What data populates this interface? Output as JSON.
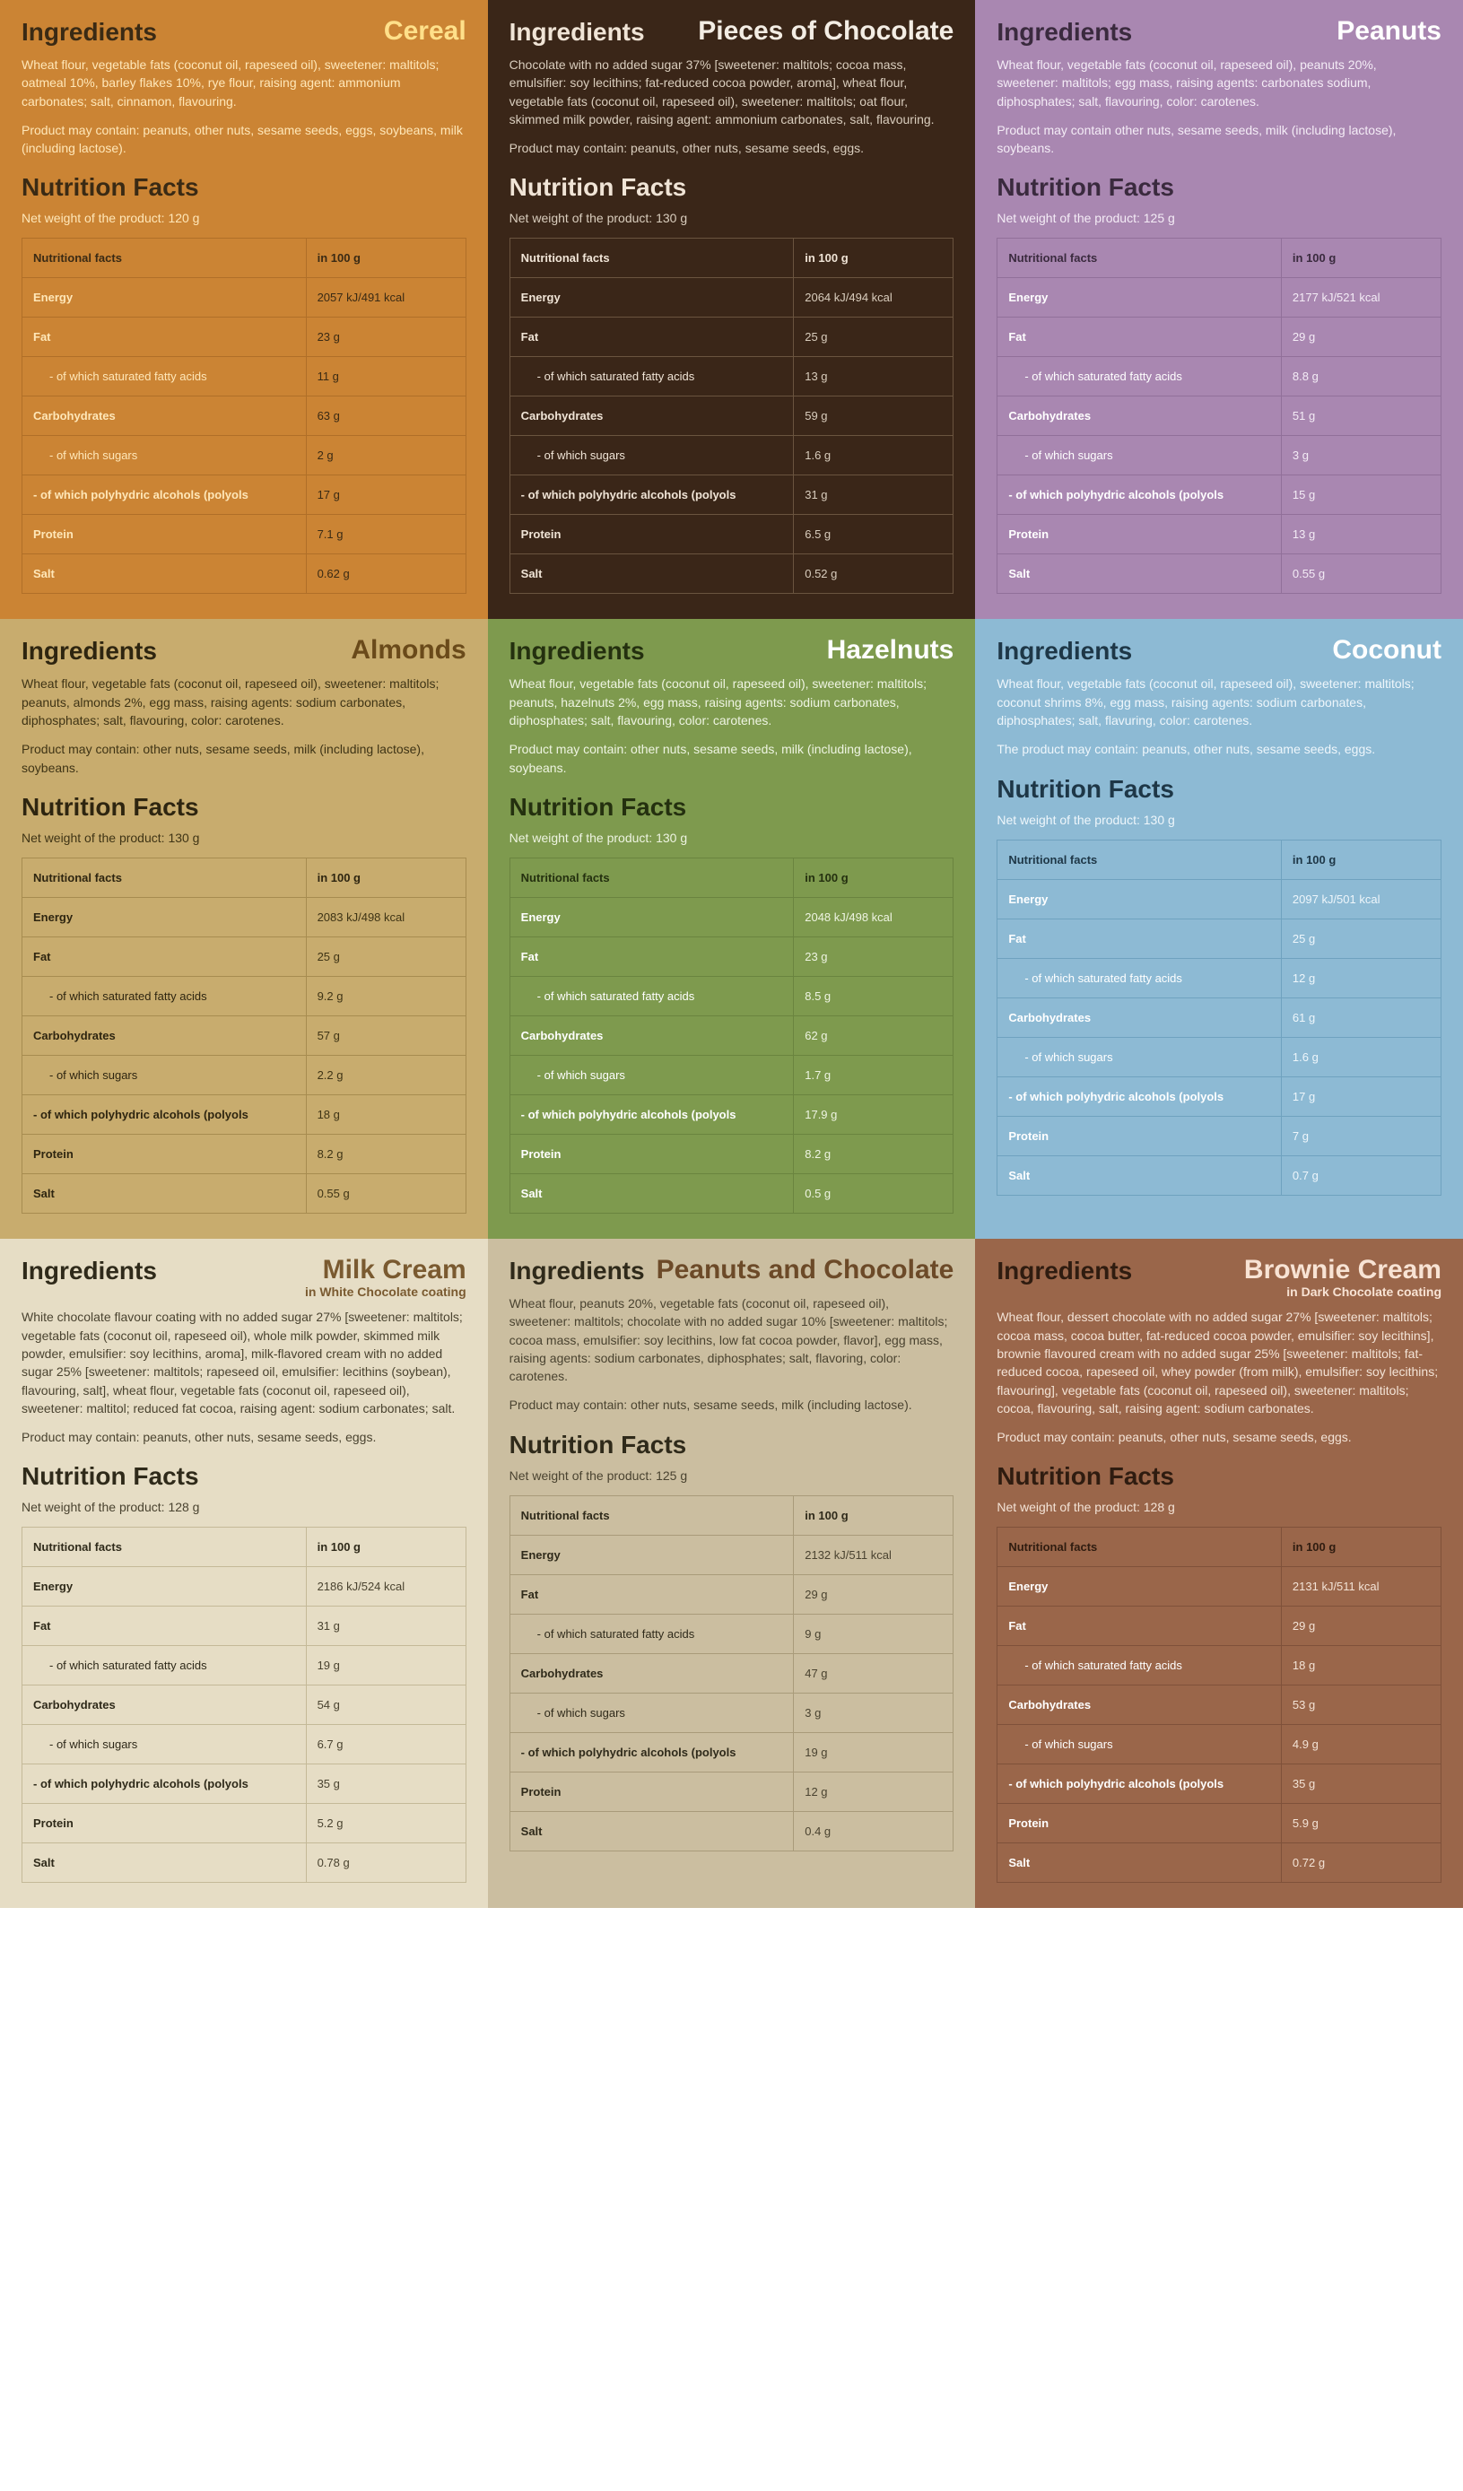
{
  "labels": {
    "ingredients": "Ingredients",
    "nutrition_facts": "Nutrition Facts",
    "net_weight_prefix": "Net weight of the product: ",
    "col_facts": "Nutritional facts",
    "col_in100": "in 100 g"
  },
  "row_defs": [
    {
      "key": "energy",
      "label": "Energy",
      "sub": false
    },
    {
      "key": "fat",
      "label": "Fat",
      "sub": false
    },
    {
      "key": "sat",
      "label": "- of which saturated fatty acids",
      "sub": true
    },
    {
      "key": "carbs",
      "label": "Carbohydrates",
      "sub": false
    },
    {
      "key": "sugars",
      "label": "- of which sugars",
      "sub": true
    },
    {
      "key": "polyols",
      "label": "- of which polyhydric alcohols (polyols",
      "sub": false
    },
    {
      "key": "protein",
      "label": "Protein",
      "sub": false
    },
    {
      "key": "salt",
      "label": "Salt",
      "sub": false
    }
  ],
  "cards": [
    {
      "title": "Cereal",
      "subtitle": "",
      "bg": "#cb8434",
      "heading": "#3a2a14",
      "title_color": "#ffe08a",
      "text": "#ffe7b8",
      "table_heading": "#3a2a14",
      "border": "#b06f28",
      "row_label": "#ffe7b8",
      "row_val": "#3a2a14",
      "ingredients": "Wheat flour, vegetable fats (coconut oil, rapeseed oil), sweetener: maltitols; oatmeal 10%, barley flakes 10%, rye flour, raising agent: ammonium carbonates; salt, cinnamon, flavouring.",
      "may_contain": "Product may contain: peanuts, other nuts, sesame seeds, eggs, soybeans, milk (including lactose).",
      "net_weight": "120 g",
      "vals": {
        "energy": "2057 kJ/491 kcal",
        "fat": "23 g",
        "sat": "11 g",
        "carbs": "63 g",
        "sugars": "2 g",
        "polyols": "17 g",
        "protein": "7.1 g",
        "salt": "0.62 g"
      }
    },
    {
      "title": "Pieces of Chocolate",
      "subtitle": "",
      "bg": "#3a2618",
      "heading": "#f0e4d6",
      "title_color": "#f3ede4",
      "text": "#d9cdbd",
      "table_heading": "#f0e4d6",
      "border": "#6a543f",
      "row_label": "#f0e4d6",
      "row_val": "#d9cdbd",
      "ingredients": "Chocolate with no added sugar 37% [sweetener: maltitols; cocoa mass, emulsifier: soy lecithins; fat-reduced cocoa powder, aroma], wheat flour, vegetable fats (coconut oil, rapeseed oil), sweetener: maltitols; oat flour, skimmed milk powder, raising agent: ammonium carbonates, salt, flavouring.",
      "may_contain": "Product may contain: peanuts, other nuts, sesame seeds, eggs.",
      "net_weight": "130 g",
      "vals": {
        "energy": "2064 kJ/494 kcal",
        "fat": "25 g",
        "sat": "13 g",
        "carbs": "59 g",
        "sugars": "1.6 g",
        "polyols": "31 g",
        "protein": "6.5 g",
        "salt": "0.52 g"
      }
    },
    {
      "title": "Peanuts",
      "subtitle": "",
      "bg": "#a987b1",
      "heading": "#3a2a3e",
      "title_color": "#ffffff",
      "text": "#f4ecf6",
      "table_heading": "#3a2a3e",
      "border": "#91709a",
      "row_label": "#ffffff",
      "row_val": "#f4ecf6",
      "ingredients": "Wheat flour, vegetable fats (coconut oil, rapeseed oil), peanuts 20%, sweetener: maltitols; egg mass, raising agents: carbonates sodium, diphosphates; salt, flavouring, color: carotenes.",
      "may_contain": "Product may contain other nuts, sesame seeds, milk (including lactose), soybeans.",
      "net_weight": "125 g",
      "vals": {
        "energy": "2177 kJ/521 kcal",
        "fat": "29 g",
        "sat": "8.8 g",
        "carbs": "51 g",
        "sugars": "3 g",
        "polyols": "15 g",
        "protein": "13 g",
        "salt": "0.55 g"
      }
    },
    {
      "title": "Almonds",
      "subtitle": "",
      "bg": "#c8ac6e",
      "heading": "#2e2510",
      "title_color": "#6a4a1a",
      "text": "#3f3415",
      "table_heading": "#2e2510",
      "border": "#a78c50",
      "row_label": "#2e2510",
      "row_val": "#3f3415",
      "ingredients": "Wheat flour, vegetable fats (coconut oil, rapeseed oil), sweetener: maltitols; peanuts, almonds 2%, egg mass, raising agents: sodium carbonates, diphosphates; salt, flavouring, color: carotenes.",
      "may_contain": "Product may contain: other nuts, sesame seeds, milk (including lactose), soybeans.",
      "net_weight": "130 g",
      "vals": {
        "energy": "2083 kJ/498 kcal",
        "fat": "25 g",
        "sat": "9.2 g",
        "carbs": "57 g",
        "sugars": "2.2 g",
        "polyols": "18 g",
        "protein": "8.2 g",
        "salt": "0.55 g"
      }
    },
    {
      "title": "Hazelnuts",
      "subtitle": "",
      "bg": "#7e9a4e",
      "heading": "#24300f",
      "title_color": "#ffffff",
      "text": "#eef4e2",
      "table_heading": "#24300f",
      "border": "#6a843f",
      "row_label": "#ffffff",
      "row_val": "#eef4e2",
      "ingredients": "Wheat flour, vegetable fats (coconut oil, rapeseed oil), sweetener: maltitols; peanuts, hazelnuts 2%, egg mass, raising agents: sodium carbonates, diphosphates; salt, flavouring, color: carotenes.",
      "may_contain": "Product may contain: other nuts, sesame seeds, milk (including lactose), soybeans.",
      "net_weight": "130 g",
      "vals": {
        "energy": "2048 kJ/498 kcal",
        "fat": "23 g",
        "sat": "8.5 g",
        "carbs": "62 g",
        "sugars": "1.7 g",
        "polyols": "17.9 g",
        "protein": "8.2 g",
        "salt": "0.5 g"
      }
    },
    {
      "title": "Coconut",
      "subtitle": "",
      "bg": "#8dbad4",
      "heading": "#1e3747",
      "title_color": "#ffffff",
      "text": "#eef6fb",
      "table_heading": "#1e3747",
      "border": "#6fa2bf",
      "row_label": "#ffffff",
      "row_val": "#eef6fb",
      "ingredients": "Wheat flour, vegetable fats (coconut oil, rapeseed oil), sweetener: maltitols; coconut shrims 8%, egg mass, raising agents: sodium carbonates, diphosphates; salt, flavuring, color: carotenes.",
      "may_contain": "The product may contain: peanuts, other nuts, sesame seeds, eggs.",
      "net_weight": "130 g",
      "vals": {
        "energy": "2097 kJ/501 kcal",
        "fat": "25 g",
        "sat": "12 g",
        "carbs": "61 g",
        "sugars": "1.6 g",
        "polyols": "17 g",
        "protein": "7 g",
        "salt": "0.7 g"
      }
    },
    {
      "title": "Milk Cream",
      "subtitle": "in White Chocolate coating",
      "bg": "#e6ddc5",
      "heading": "#2f2a1a",
      "title_color": "#7a5a30",
      "text": "#4a4330",
      "table_heading": "#2f2a1a",
      "border": "#c4b998",
      "row_label": "#2f2a1a",
      "row_val": "#4a4330",
      "ingredients": "White chocolate flavour coating with no added sugar 27% [sweetener: maltitols; vegetable fats (coconut oil, rapeseed oil), whole milk powder, skimmed milk powder, emulsifier: soy lecithins, aroma], milk-flavored cream with no added sugar 25% [sweetener: maltitols; rapeseed oil, emulsifier: lecithins (soybean), flavouring, salt], wheat flour, vegetable fats (coconut oil, rapeseed oil), sweetener: maltitol; reduced fat cocoa, raising agent: sodium carbonates; salt.",
      "may_contain": "Product may contain: peanuts, other nuts, sesame seeds, eggs.",
      "net_weight": "128 g",
      "vals": {
        "energy": "2186 kJ/524 kcal",
        "fat": "31 g",
        "sat": "19 g",
        "carbs": "54 g",
        "sugars": "6.7 g",
        "polyols": "35 g",
        "protein": "5.2 g",
        "salt": "0.78 g"
      }
    },
    {
      "title": "Peanuts and Chocolate",
      "subtitle": "",
      "bg": "#cbbea0",
      "heading": "#2f2a1a",
      "title_color": "#6c4a28",
      "text": "#4a4330",
      "table_heading": "#2f2a1a",
      "border": "#a99b7a",
      "row_label": "#2f2a1a",
      "row_val": "#4a4330",
      "ingredients": "Wheat flour, peanuts 20%, vegetable fats (coconut oil, rapeseed oil), sweetener: maltitols; chocolate with no added sugar 10% [sweetener: maltitols; cocoa mass, emulsifier: soy lecithins, low fat cocoa powder, flavor], egg mass, raising agents: sodium carbonates, diphosphates; salt, flavoring, color: carotenes.",
      "may_contain": "Product may contain: other nuts, sesame seeds, milk (including lactose).",
      "net_weight": "125 g",
      "vals": {
        "energy": "2132 kJ/511 kcal",
        "fat": "29 g",
        "sat": "9 g",
        "carbs": "47 g",
        "sugars": "3 g",
        "polyols": "19 g",
        "protein": "12 g",
        "salt": "0.4 g"
      }
    },
    {
      "title": "Brownie Cream",
      "subtitle": "in Dark Chocolate coating",
      "bg": "#9a664a",
      "heading": "#2f1c10",
      "title_color": "#f8e3d4",
      "text": "#f3e3d6",
      "table_heading": "#2f1c10",
      "border": "#7f513a",
      "row_label": "#ffffff",
      "row_val": "#f3e3d6",
      "ingredients": "Wheat flour, dessert chocolate with no added sugar 27% [sweetener: maltitols; cocoa mass, cocoa butter, fat-reduced cocoa powder, emulsifier: soy lecithins], brownie flavoured cream with no added sugar 25% [sweetener: maltitols; fat-reduced cocoa, rapeseed oil, whey powder (from milk), emulsifier: soy lecithins; flavouring], vegetable fats (coconut oil, rapeseed oil), sweetener: maltitols; cocoa, flavouring, salt, raising agent: sodium carbonates.",
      "may_contain": "Product may contain: peanuts, other nuts, sesame seeds, eggs.",
      "net_weight": "128 g",
      "vals": {
        "energy": "2131 kJ/511 kcal",
        "fat": "29 g",
        "sat": "18 g",
        "carbs": "53 g",
        "sugars": "4.9 g",
        "polyols": "35 g",
        "protein": "5.9 g",
        "salt": "0.72 g"
      }
    }
  ]
}
